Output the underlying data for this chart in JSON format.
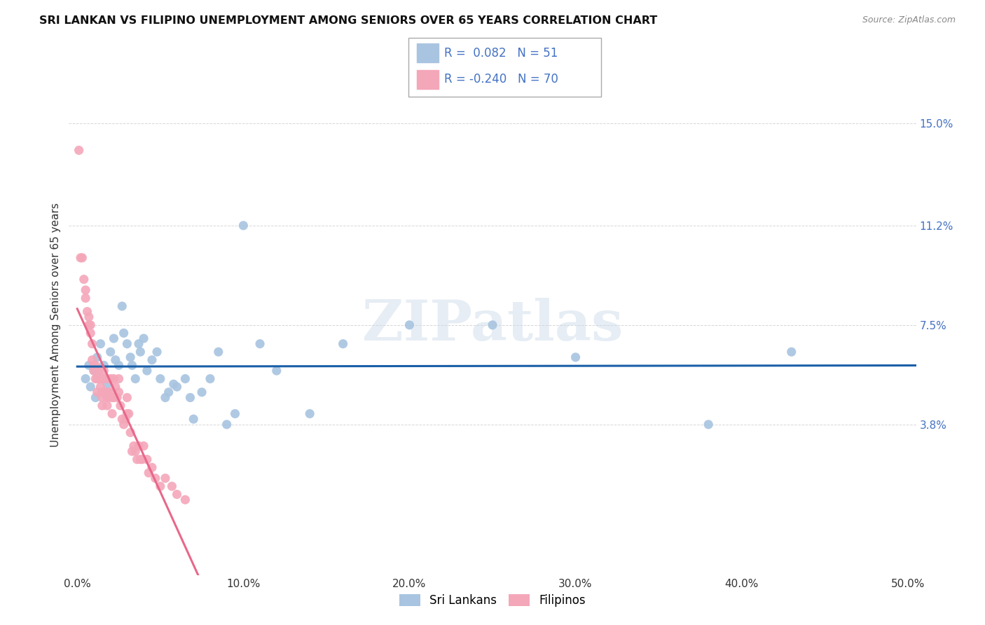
{
  "title": "SRI LANKAN VS FILIPINO UNEMPLOYMENT AMONG SENIORS OVER 65 YEARS CORRELATION CHART",
  "source": "Source: ZipAtlas.com",
  "xlabel_ticks": [
    "0.0%",
    "10.0%",
    "20.0%",
    "30.0%",
    "40.0%",
    "50.0%"
  ],
  "xlabel_vals": [
    0.0,
    0.1,
    0.2,
    0.3,
    0.4,
    0.5
  ],
  "ylabel_ticks": [
    "3.8%",
    "7.5%",
    "11.2%",
    "15.0%"
  ],
  "ylabel_vals": [
    0.038,
    0.075,
    0.112,
    0.15
  ],
  "ylabel_label": "Unemployment Among Seniors over 65 years",
  "xlim": [
    -0.005,
    0.505
  ],
  "ylim": [
    -0.018,
    0.168
  ],
  "sri_lankans_R": 0.082,
  "sri_lankans_N": 51,
  "filipinos_R": -0.24,
  "filipinos_N": 70,
  "sri_lankans_color": "#a8c4e0",
  "filipinos_color": "#f4a7b9",
  "sri_lankans_line_color": "#1a5fa8",
  "filipinos_line_color": "#e8688a",
  "watermark": "ZIPatlas",
  "sri_lankans_x": [
    0.005,
    0.007,
    0.008,
    0.01,
    0.011,
    0.012,
    0.013,
    0.014,
    0.015,
    0.016,
    0.017,
    0.018,
    0.02,
    0.022,
    0.023,
    0.025,
    0.027,
    0.028,
    0.03,
    0.032,
    0.033,
    0.035,
    0.037,
    0.038,
    0.04,
    0.042,
    0.045,
    0.048,
    0.05,
    0.053,
    0.055,
    0.058,
    0.06,
    0.065,
    0.068,
    0.07,
    0.075,
    0.08,
    0.085,
    0.09,
    0.095,
    0.1,
    0.11,
    0.12,
    0.14,
    0.16,
    0.2,
    0.25,
    0.3,
    0.38,
    0.43
  ],
  "sri_lankans_y": [
    0.055,
    0.06,
    0.052,
    0.058,
    0.048,
    0.063,
    0.058,
    0.068,
    0.055,
    0.06,
    0.05,
    0.053,
    0.065,
    0.07,
    0.062,
    0.06,
    0.082,
    0.072,
    0.068,
    0.063,
    0.06,
    0.055,
    0.068,
    0.065,
    0.07,
    0.058,
    0.062,
    0.065,
    0.055,
    0.048,
    0.05,
    0.053,
    0.052,
    0.055,
    0.048,
    0.04,
    0.05,
    0.055,
    0.065,
    0.038,
    0.042,
    0.112,
    0.068,
    0.058,
    0.042,
    0.068,
    0.075,
    0.075,
    0.063,
    0.038,
    0.065
  ],
  "filipinos_x": [
    0.001,
    0.002,
    0.003,
    0.004,
    0.005,
    0.005,
    0.006,
    0.007,
    0.007,
    0.008,
    0.008,
    0.009,
    0.009,
    0.01,
    0.01,
    0.011,
    0.011,
    0.012,
    0.012,
    0.013,
    0.013,
    0.014,
    0.014,
    0.015,
    0.015,
    0.015,
    0.016,
    0.016,
    0.017,
    0.017,
    0.018,
    0.018,
    0.018,
    0.019,
    0.019,
    0.02,
    0.02,
    0.021,
    0.021,
    0.022,
    0.022,
    0.023,
    0.024,
    0.025,
    0.025,
    0.026,
    0.027,
    0.028,
    0.029,
    0.03,
    0.03,
    0.031,
    0.032,
    0.033,
    0.034,
    0.035,
    0.036,
    0.037,
    0.038,
    0.039,
    0.04,
    0.042,
    0.043,
    0.045,
    0.047,
    0.05,
    0.053,
    0.057,
    0.06,
    0.065
  ],
  "filipinos_y": [
    0.14,
    0.1,
    0.1,
    0.092,
    0.088,
    0.085,
    0.08,
    0.078,
    0.075,
    0.072,
    0.075,
    0.068,
    0.062,
    0.06,
    0.058,
    0.055,
    0.06,
    0.05,
    0.055,
    0.055,
    0.058,
    0.052,
    0.055,
    0.048,
    0.05,
    0.045,
    0.055,
    0.058,
    0.05,
    0.05,
    0.045,
    0.048,
    0.055,
    0.05,
    0.048,
    0.05,
    0.055,
    0.042,
    0.048,
    0.055,
    0.048,
    0.052,
    0.048,
    0.055,
    0.05,
    0.045,
    0.04,
    0.038,
    0.04,
    0.042,
    0.048,
    0.042,
    0.035,
    0.028,
    0.03,
    0.028,
    0.025,
    0.03,
    0.025,
    0.025,
    0.03,
    0.025,
    0.02,
    0.022,
    0.018,
    0.015,
    0.018,
    0.015,
    0.012,
    0.01
  ]
}
